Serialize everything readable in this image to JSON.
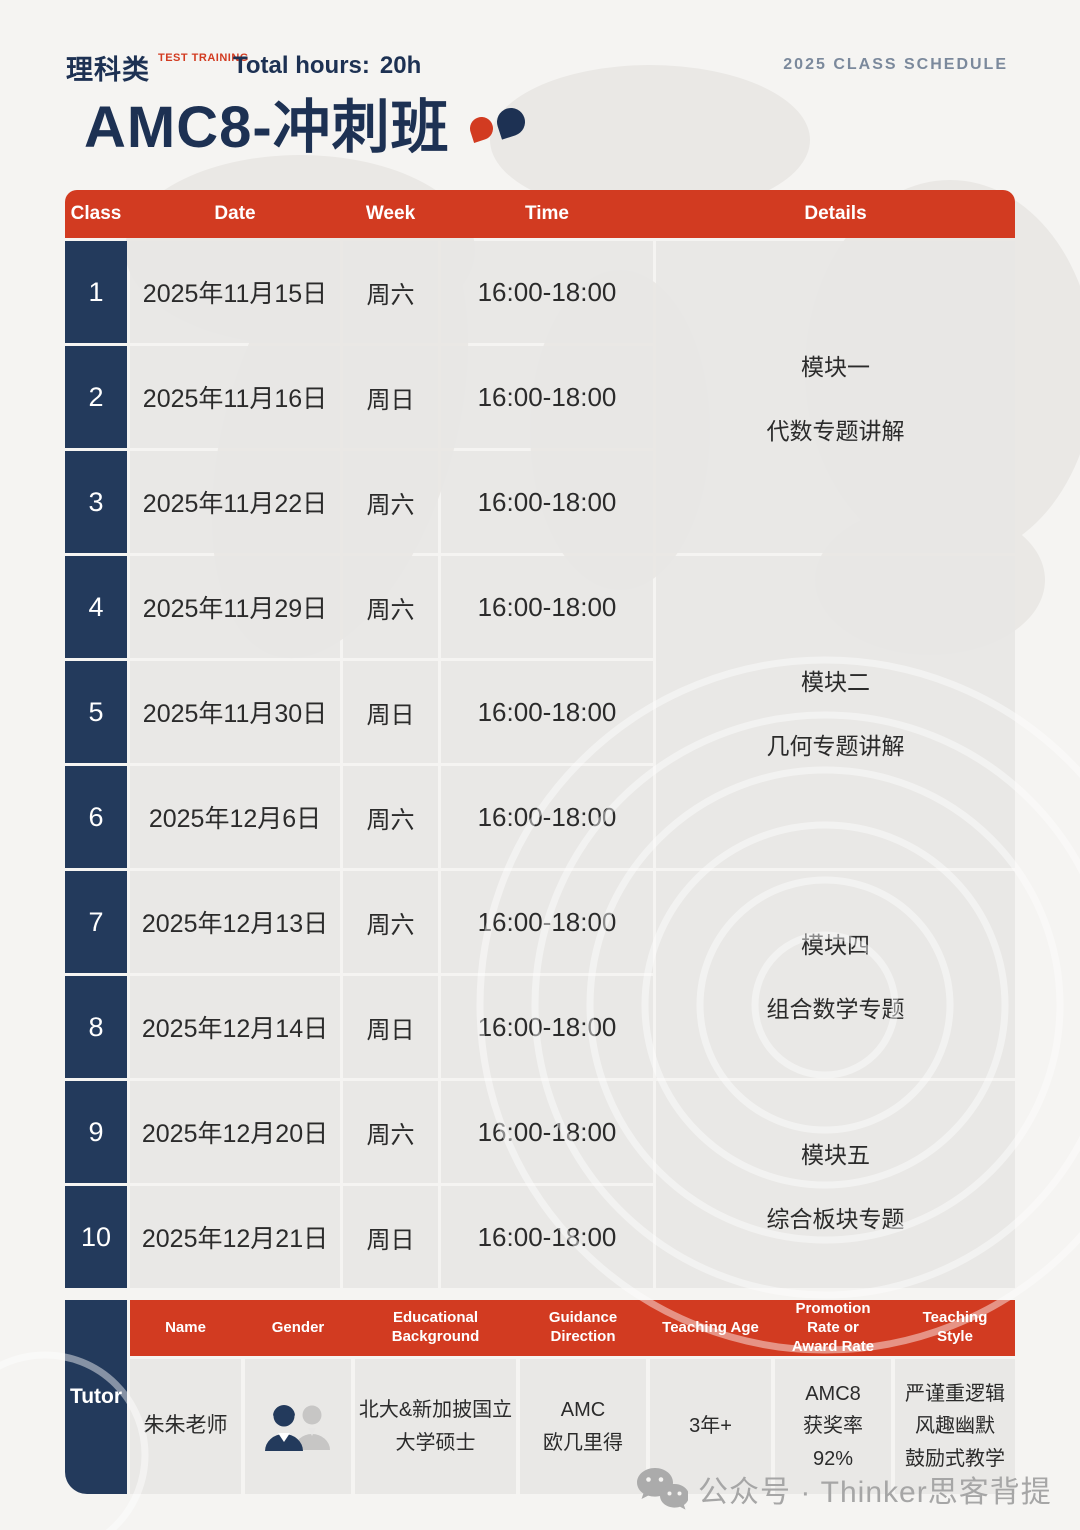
{
  "brand": {
    "logo_cn": "理科类",
    "logo_en": [
      "TEST",
      "TRAINING"
    ]
  },
  "header": {
    "total_hours_label": "Total hours:",
    "total_hours_value": "20h",
    "schedule_label": "2025 CLASS SCHEDULE",
    "title": "AMC8-冲刺班"
  },
  "schedule": {
    "columns": [
      "Class",
      "Date",
      "Week",
      "Time",
      "Details"
    ],
    "rows": [
      {
        "no": "1",
        "date": "2025年11月15日",
        "week": "周六",
        "time": "16:00-18:00"
      },
      {
        "no": "2",
        "date": "2025年11月16日",
        "week": "周日",
        "time": "16:00-18:00"
      },
      {
        "no": "3",
        "date": "2025年11月22日",
        "week": "周六",
        "time": "16:00-18:00"
      },
      {
        "no": "4",
        "date": "2025年11月29日",
        "week": "周六",
        "time": "16:00-18:00"
      },
      {
        "no": "5",
        "date": "2025年11月30日",
        "week": "周日",
        "time": "16:00-18:00"
      },
      {
        "no": "6",
        "date": "2025年12月6日",
        "week": "周六",
        "time": "16:00-18:00"
      },
      {
        "no": "7",
        "date": "2025年12月13日",
        "week": "周六",
        "time": "16:00-18:00"
      },
      {
        "no": "8",
        "date": "2025年12月14日",
        "week": "周日",
        "time": "16:00-18:00"
      },
      {
        "no": "9",
        "date": "2025年12月20日",
        "week": "周六",
        "time": "16:00-18:00"
      },
      {
        "no": "10",
        "date": "2025年12月21日",
        "week": "周日",
        "time": "16:00-18:00"
      }
    ],
    "modules": [
      {
        "title": "模块一",
        "topic": "代数专题讲解",
        "row_start": 1,
        "row_end": 3
      },
      {
        "title": "模块二",
        "topic": "几何专题讲解",
        "row_start": 4,
        "row_end": 6
      },
      {
        "title": "模块四",
        "topic": "组合数学专题",
        "row_start": 7,
        "row_end": 8
      },
      {
        "title": "模块五",
        "topic": "综合板块专题",
        "row_start": 9,
        "row_end": 10
      }
    ]
  },
  "tutor": {
    "label": "Tutor",
    "columns": [
      "Name",
      "Gender",
      "Educational Background",
      "Guidance Direction",
      "Teaching Age",
      "Promotion Rate or Award Rate",
      "Teaching Style"
    ],
    "name": "朱朱老师",
    "gender_icon": "female-male-icon",
    "education": [
      "北大&新加披国立",
      "大学硕士"
    ],
    "guidance": [
      "AMC",
      "欧几里得"
    ],
    "teaching_age": "3年+",
    "award_rate": [
      "AMC8",
      "获奖率",
      "92%"
    ],
    "teaching_style": [
      "严谨重逻辑",
      "风趣幽默",
      "鼓励式教学"
    ]
  },
  "watermark": {
    "icon": "wechat-icon",
    "text": "公众号 · Thinker思客背提"
  },
  "colors": {
    "red": "#d23b21",
    "navy": "#233a5c",
    "navy_dark": "#1d3153",
    "page_bg": "#f5f4f2",
    "text_dark": "#2b2b2b",
    "muted": "#7b899c",
    "watermark": "#a6a6a6"
  }
}
